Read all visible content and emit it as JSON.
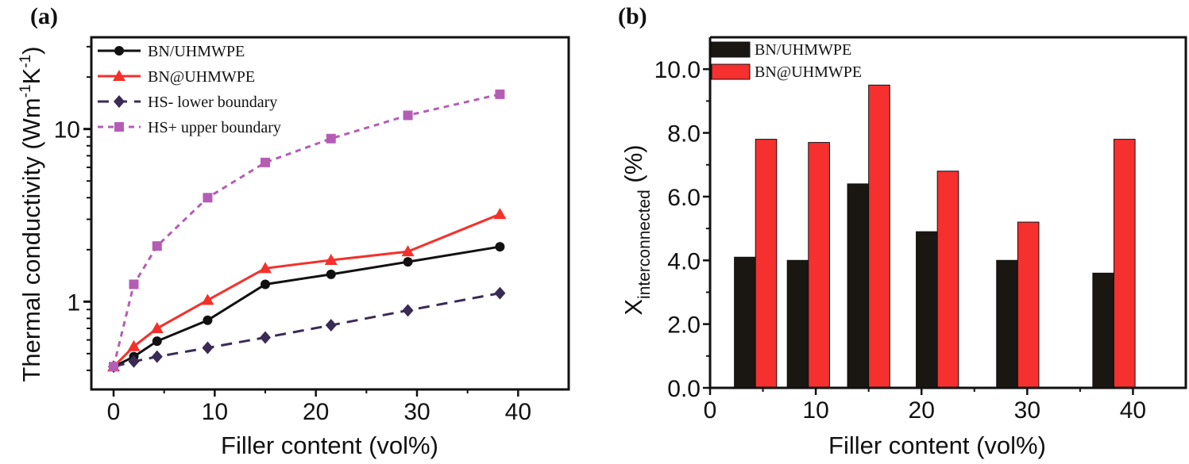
{
  "chart_data": [
    {
      "panel_label": "(a)",
      "type": "line",
      "xlabel": "Filler content (vol%)",
      "ylabel": {
        "main": "Thermal  conductivity (Wm",
        "sup1": "-1",
        "mid": "K",
        "sup2": "-1",
        "end": ")"
      },
      "xlim": [
        -2.2,
        45
      ],
      "ylim": [
        0.31,
        34
      ],
      "yscale": "log",
      "xticks": [
        "0",
        "10",
        "20",
        "30",
        "40"
      ],
      "yticks": [
        "1",
        "10"
      ],
      "grid": false,
      "legend_position": "top-left",
      "series": [
        {
          "name": "BN/UHMWPE",
          "color": "#111111",
          "marker": "circle",
          "dash": "solid",
          "x": [
            0,
            2.0,
            4.3,
            9.3,
            15.0,
            21.5,
            29.1,
            38.2
          ],
          "y": [
            0.42,
            0.48,
            0.59,
            0.78,
            1.26,
            1.44,
            1.7,
            2.08
          ]
        },
        {
          "name": "BN@UHMWPE",
          "color": "#f5302a",
          "marker": "triangle",
          "dash": "solid",
          "x": [
            0,
            2.0,
            4.3,
            9.3,
            15.0,
            21.5,
            29.1,
            38.2
          ],
          "y": [
            0.42,
            0.55,
            0.7,
            1.02,
            1.56,
            1.74,
            1.95,
            3.21
          ]
        },
        {
          "name": "HS-   lower boundary",
          "color": "#3a2b55",
          "marker": "diamond",
          "dash": "dashed",
          "x": [
            0,
            2.0,
            4.3,
            9.3,
            15.0,
            21.5,
            29.1,
            38.2
          ],
          "y": [
            0.42,
            0.45,
            0.48,
            0.54,
            0.62,
            0.73,
            0.89,
            1.12
          ]
        },
        {
          "name": "HS+  upper boundary",
          "color": "#b55db5",
          "marker": "square",
          "dash": "dotted",
          "x": [
            0,
            2.0,
            4.3,
            9.3,
            15.0,
            21.5,
            29.1,
            38.2
          ],
          "y": [
            0.42,
            1.26,
            2.1,
            4.0,
            6.4,
            8.8,
            12.0,
            15.9
          ]
        }
      ]
    },
    {
      "panel_label": "(b)",
      "type": "bar",
      "xlabel": "Filler content (vol%)",
      "ylabel": {
        "main": "X",
        "sub": "interconnected",
        "end": " (%)"
      },
      "xlim": [
        0,
        45
      ],
      "ylim": [
        0,
        11
      ],
      "xticks": [
        "0",
        "10",
        "20",
        "30",
        "40"
      ],
      "yticks": [
        "0.0",
        "2.0",
        "4.0",
        "6.0",
        "8.0",
        "10.0"
      ],
      "grid": false,
      "legend_position": "top-left",
      "x": [
        4.3,
        9.3,
        15.0,
        21.5,
        29.1,
        38.2
      ],
      "series": [
        {
          "name": "BN/UHMWPE",
          "color": "#1a1611",
          "values": [
            4.1,
            4.0,
            6.4,
            4.9,
            4.0,
            3.6
          ]
        },
        {
          "name": "BN@UHMWPE",
          "color": "#f5302f",
          "values": [
            7.8,
            7.7,
            9.5,
            6.8,
            5.2,
            7.8
          ]
        }
      ]
    }
  ]
}
